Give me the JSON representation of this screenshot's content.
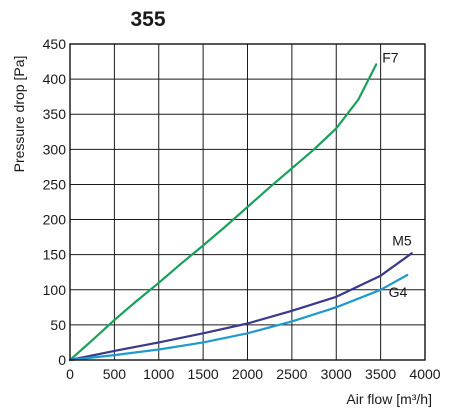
{
  "chart_data": {
    "type": "line",
    "title": "355",
    "xlabel": "Air flow [m³/h]",
    "ylabel": "Pressure drop [Pa]",
    "xlim": [
      0,
      4000
    ],
    "ylim": [
      0,
      450
    ],
    "xticks": [
      0,
      500,
      1000,
      1500,
      2000,
      2500,
      3000,
      3500,
      4000
    ],
    "yticks": [
      0,
      50,
      100,
      150,
      200,
      250,
      300,
      350,
      400,
      450
    ],
    "grid": true,
    "series": [
      {
        "name": "F7",
        "color": "#1aa05a",
        "x": [
          0,
          250,
          500,
          750,
          1000,
          1250,
          1500,
          1750,
          2000,
          2250,
          2500,
          2750,
          3000,
          3250,
          3450
        ],
        "y": [
          0,
          28,
          57,
          84,
          110,
          137,
          163,
          190,
          218,
          246,
          273,
          300,
          330,
          371,
          421
        ]
      },
      {
        "name": "M5",
        "color": "#3a3a8a",
        "x": [
          0,
          500,
          1000,
          1500,
          2000,
          2500,
          3000,
          3500,
          3850
        ],
        "y": [
          0,
          13,
          25,
          38,
          52,
          70,
          90,
          120,
          152
        ]
      },
      {
        "name": "G4",
        "color": "#1e9bcc",
        "x": [
          0,
          500,
          1000,
          1500,
          2000,
          2500,
          3000,
          3500,
          3800
        ],
        "y": [
          0,
          7,
          15,
          25,
          38,
          55,
          75,
          100,
          121
        ]
      }
    ]
  }
}
